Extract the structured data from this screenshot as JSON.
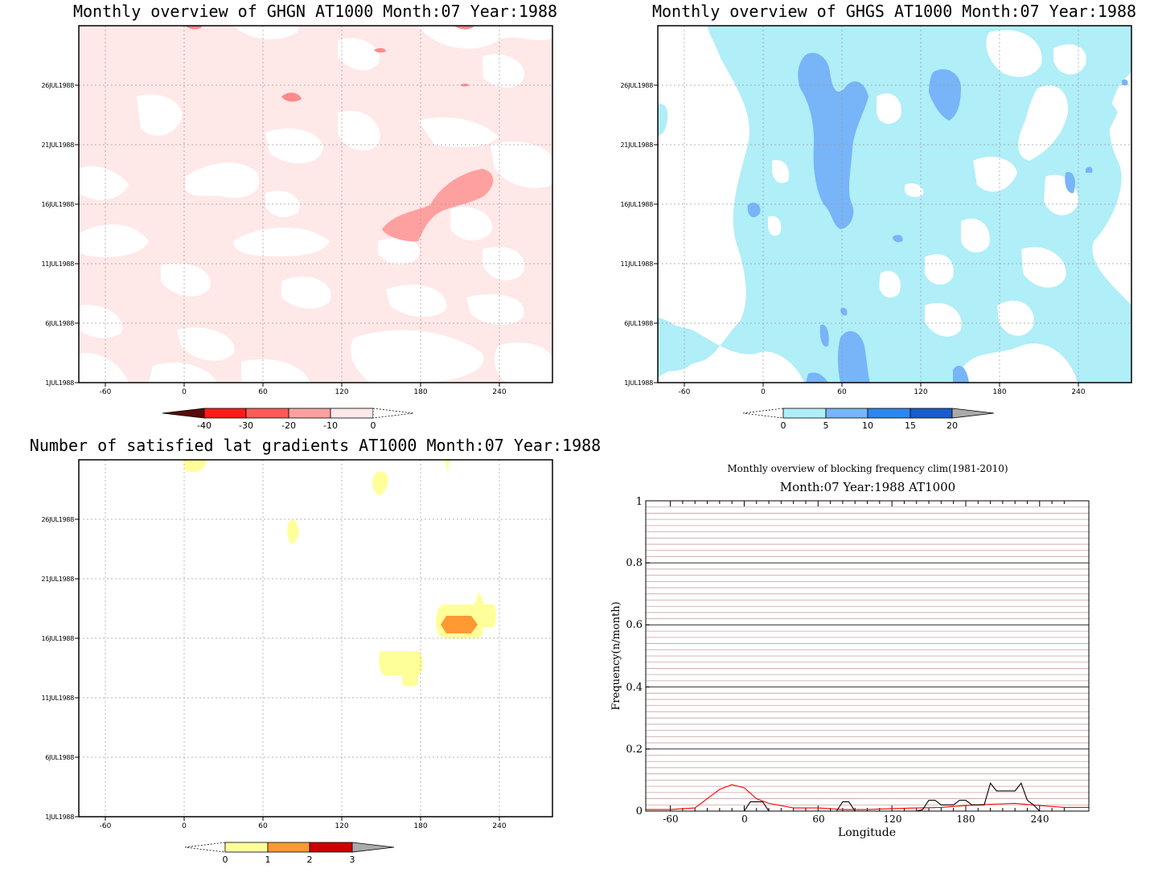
{
  "chart_data": [
    {
      "type": "heatmap",
      "title": "Monthly overview of GHGN AT1000 Month:07 Year:1988",
      "x_ticks": [
        "-60",
        "0",
        "60",
        "120",
        "180",
        "240"
      ],
      "y_ticks": [
        "1JUL1988",
        "6JUL1988",
        "11JUL1988",
        "16JUL1988",
        "21JUL1988",
        "26JUL1988"
      ],
      "colorbar": {
        "labels": [
          "-40",
          "-30",
          "-20",
          "-10",
          "0"
        ],
        "colors": [
          "#5a0a0a",
          "#ff1a1a",
          "#ff5a5a",
          "#ffa0a0",
          "#ffe8e8"
        ]
      }
    },
    {
      "type": "heatmap",
      "title": "Monthly overview of GHGS AT1000 Month:07 Year:1988",
      "x_ticks": [
        "-60",
        "0",
        "60",
        "120",
        "180",
        "240"
      ],
      "y_ticks": [
        "1JUL1988",
        "6JUL1988",
        "11JUL1988",
        "16JUL1988",
        "21JUL1988",
        "26JUL1988"
      ],
      "colorbar": {
        "labels": [
          "0",
          "5",
          "10",
          "15",
          "20"
        ],
        "colors": [
          "#b0eef8",
          "#78b4f8",
          "#2e86ee",
          "#1a5ccc",
          "#aaaaaa"
        ]
      }
    },
    {
      "type": "heatmap",
      "title": "Number of satisfied lat gradients AT1000 Month:07 Year:1988",
      "x_ticks": [
        "-60",
        "0",
        "60",
        "120",
        "180",
        "240"
      ],
      "y_ticks": [
        "1JUL1988",
        "6JUL1988",
        "11JUL1988",
        "16JUL1988",
        "21JUL1988",
        "26JUL1988"
      ],
      "colorbar": {
        "labels": [
          "0",
          "1",
          "2",
          "3"
        ],
        "colors": [
          "#ffff99",
          "#ff9933",
          "#cc0000",
          "#aaaaaa"
        ]
      }
    },
    {
      "type": "line",
      "title": "Monthly overview of blocking frequency clim(1981-2010)",
      "subtitle": "Month:07 Year:1988  AT1000",
      "xlabel": "Longitude",
      "ylabel": "Frequency(n/month)",
      "x_ticks": [
        "-60",
        "0",
        "60",
        "120",
        "180",
        "240"
      ],
      "y_ticks": [
        "0",
        "0.2",
        "0.4",
        "0.6",
        "0.8",
        "1"
      ],
      "xlim": [
        -80,
        280
      ],
      "ylim": [
        0,
        1
      ],
      "series": [
        {
          "color": "#ff0000",
          "x": [
            -80,
            -60,
            -40,
            -30,
            -20,
            -10,
            0,
            10,
            20,
            40,
            60,
            80,
            100,
            120,
            140,
            160,
            180,
            200,
            220,
            240,
            260,
            280
          ],
          "values": [
            0.005,
            0.005,
            0.01,
            0.04,
            0.07,
            0.085,
            0.075,
            0.04,
            0.025,
            0.01,
            0.01,
            0.005,
            0.005,
            0.008,
            0.01,
            0.012,
            0.018,
            0.022,
            0.025,
            0.018,
            0.012,
            0.012
          ]
        },
        {
          "color": "#000000",
          "x": [
            -80,
            -50,
            -40,
            -5,
            0,
            5,
            15,
            20,
            25,
            60,
            75,
            80,
            85,
            90,
            140,
            145,
            150,
            155,
            160,
            165,
            170,
            175,
            180,
            185,
            190,
            195,
            200,
            205,
            210,
            220,
            225,
            230,
            235,
            240,
            280
          ],
          "values": [
            0,
            0,
            0,
            0,
            0,
            0.03,
            0.03,
            0,
            0,
            0,
            0,
            0.03,
            0.03,
            0,
            0,
            0.005,
            0.035,
            0.035,
            0.02,
            0.02,
            0.02,
            0.035,
            0.035,
            0.02,
            0.02,
            0.02,
            0.09,
            0.065,
            0.065,
            0.065,
            0.09,
            0.035,
            0.02,
            0,
            0
          ]
        }
      ]
    }
  ]
}
